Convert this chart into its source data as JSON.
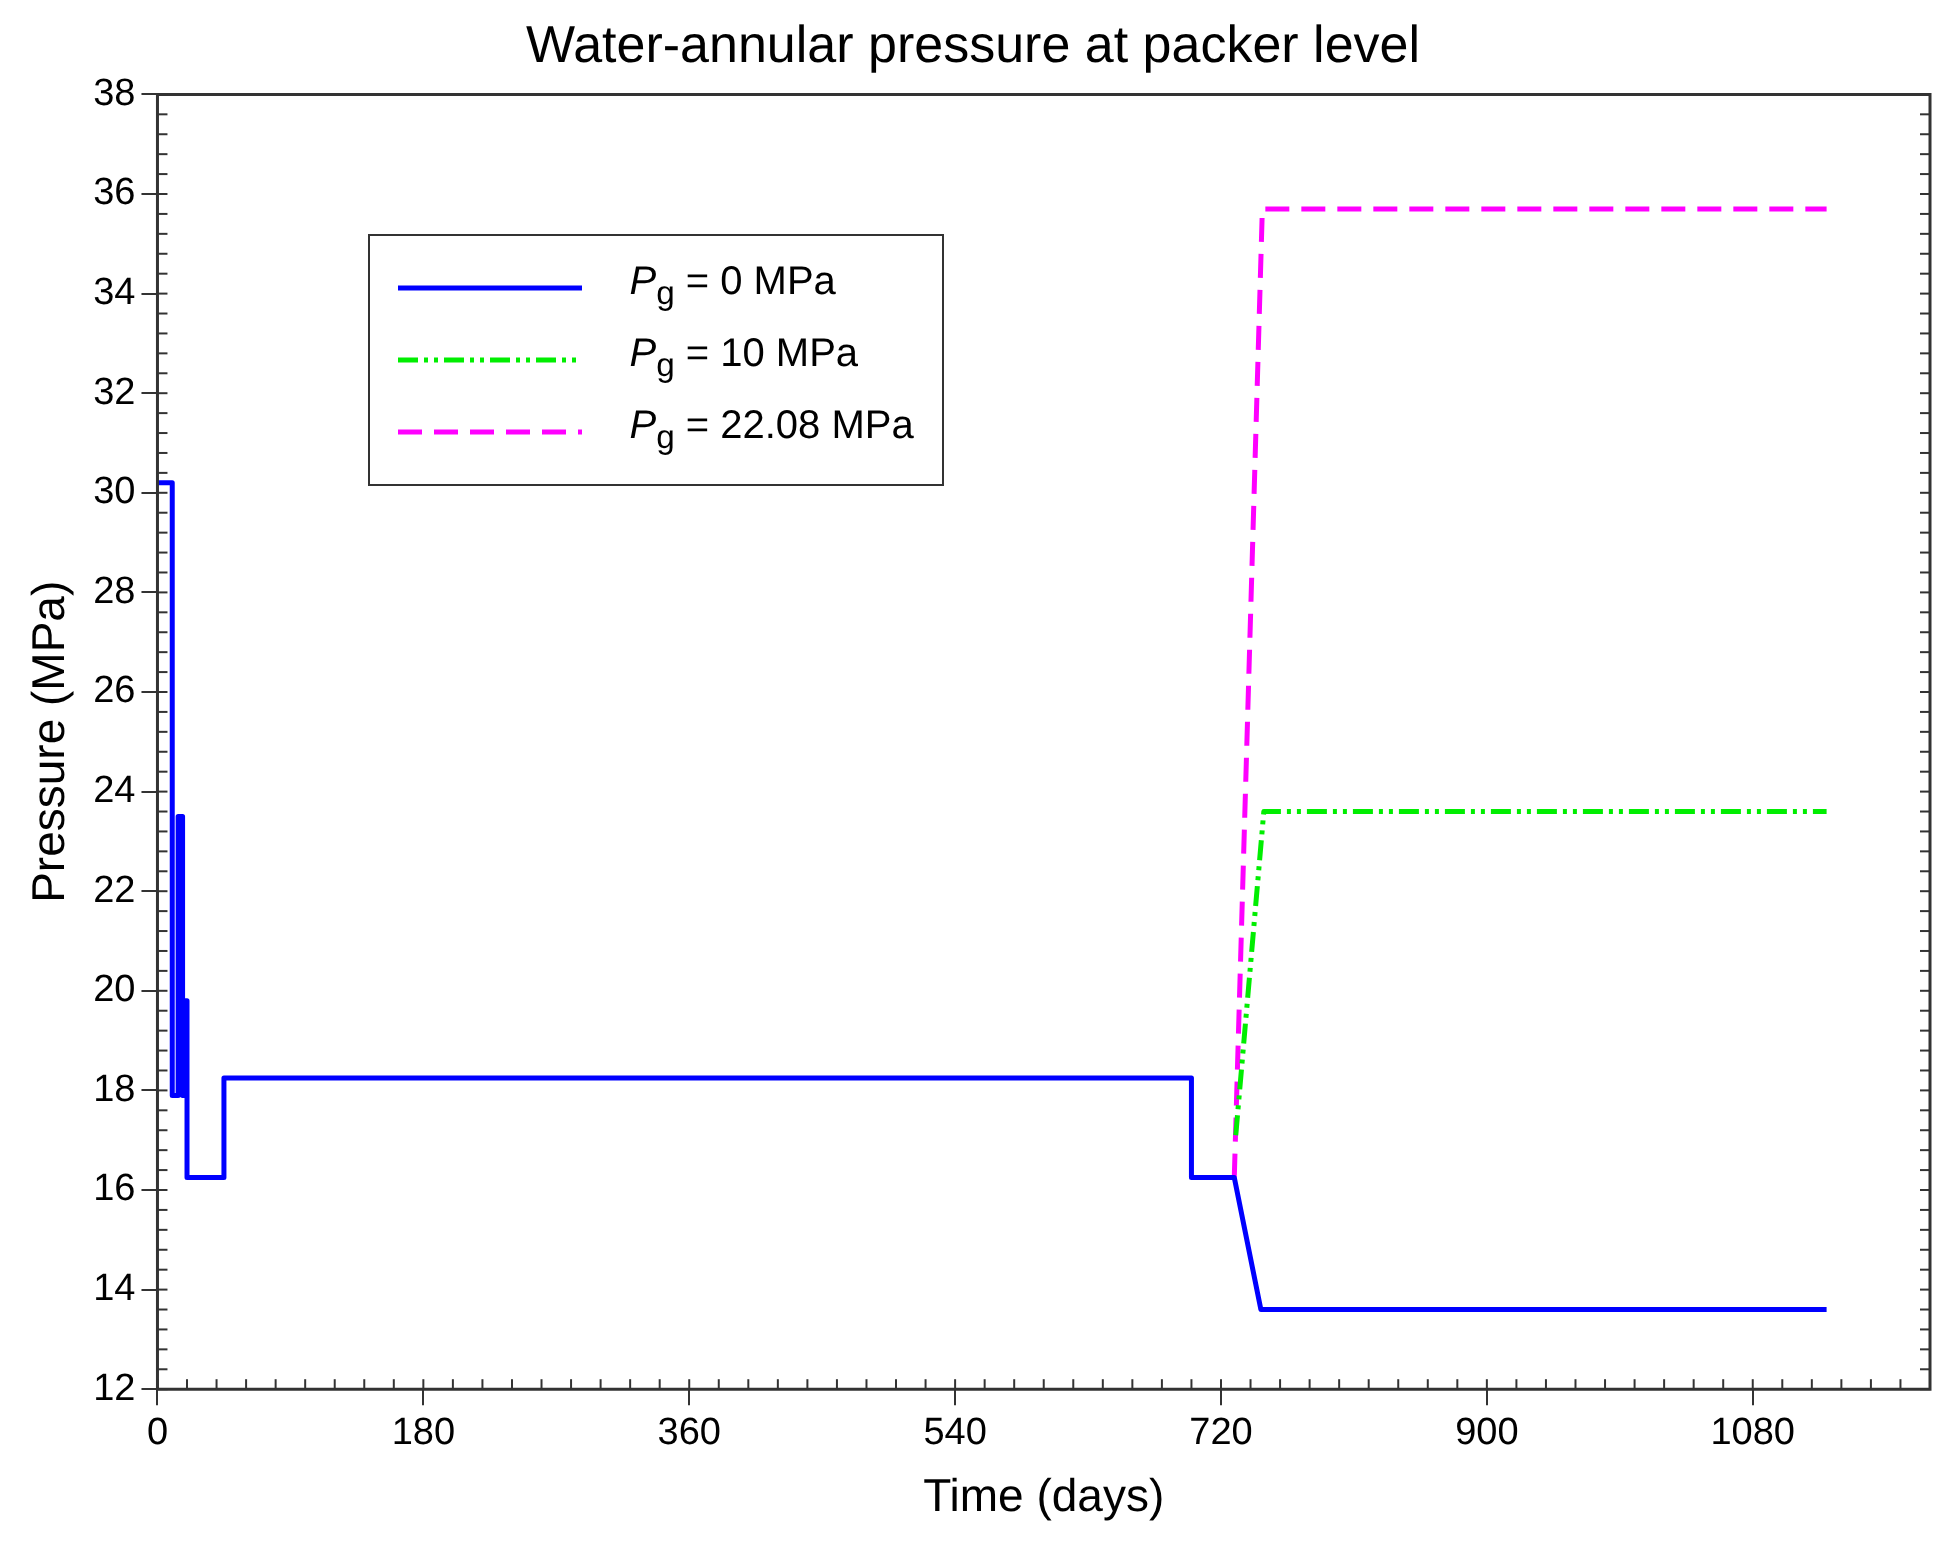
{
  "chart_data": {
    "type": "line",
    "title": "Water-annular pressure at packer level",
    "xlabel": "Time (days)",
    "ylabel": "Pressure (MPa)",
    "xlim": [
      0,
      1200
    ],
    "xticks": [
      0,
      180,
      360,
      540,
      720,
      900,
      1080
    ],
    "ylim": [
      12,
      38
    ],
    "yticks": [
      12,
      14,
      16,
      18,
      20,
      22,
      24,
      26,
      28,
      30,
      32,
      34,
      36,
      38
    ],
    "grid": false,
    "legend": "top left",
    "marker": "none",
    "series": [
      {
        "name": "P$_{g}$ = 0 MPa",
        "color": "#0000ff",
        "line_style": "solid",
        "x": [
          0,
          10,
          10,
          14,
          14,
          17,
          17,
          19,
          19,
          20,
          20,
          45,
          45,
          700,
          700,
          729,
          747,
          1130
        ],
        "values": [
          30.2,
          30.2,
          17.9,
          17.9,
          23.5,
          23.5,
          17.9,
          17.9,
          19.8,
          19.8,
          16.25,
          16.25,
          18.25,
          18.25,
          16.25,
          16.25,
          13.6,
          13.6
        ]
      },
      {
        "name": "P$_{g}$ = 10 MPa",
        "color": "#00ee00",
        "line_style": "dotted",
        "x": [
          730,
          749,
          1130
        ],
        "values": [
          17.1,
          23.6,
          23.6
        ]
      },
      {
        "name": "P$_{g}$ = 22.08 MPa",
        "color": "#ff00ff",
        "line_style": "dashed",
        "x": [
          729,
          748,
          1130
        ],
        "values": [
          16.25,
          35.7,
          35.7
        ]
      }
    ]
  }
}
